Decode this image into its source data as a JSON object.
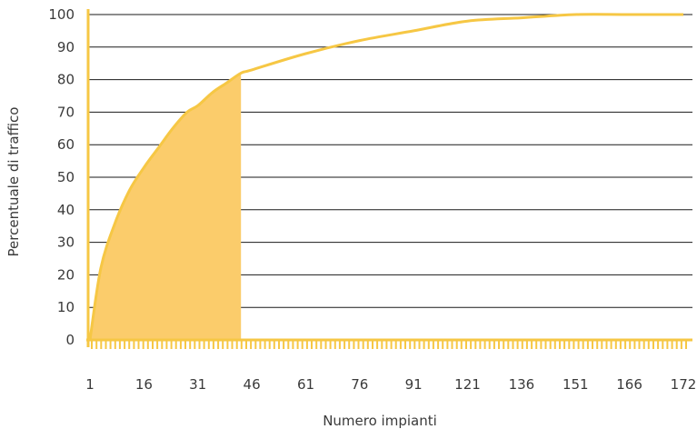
{
  "chart_data": {
    "type": "area",
    "xlabel": "Numero impianti",
    "ylabel": "Percentuale di traffico",
    "ylim": [
      0,
      100
    ],
    "yticks": [
      0,
      10,
      20,
      30,
      40,
      50,
      60,
      70,
      80,
      90,
      100
    ],
    "xtick_labels": [
      "1",
      "16",
      "31",
      "46",
      "61",
      "76",
      "91",
      "121",
      "136",
      "151",
      "166",
      "172"
    ],
    "grid": "horizontal",
    "shaded_range": {
      "from": "1",
      "to": "~43"
    },
    "series": [
      {
        "x": [
          "1",
          "4",
          "8",
          "12",
          "16",
          "20",
          "24",
          "28",
          "31",
          "35",
          "39",
          "43",
          "46",
          "61",
          "76",
          "91",
          "121",
          "136",
          "151",
          "166",
          "172"
        ],
        "values": [
          0,
          22,
          36,
          46,
          53,
          59,
          65,
          70,
          72,
          76,
          79,
          82,
          83,
          88,
          92,
          95,
          98,
          99,
          100,
          100,
          100
        ],
        "color": "#f6c744"
      }
    ],
    "colors": {
      "line": "#f6c744",
      "fill": "#fbcc6b",
      "grid": "#1a1a1a",
      "axis": "#f6c744"
    }
  }
}
